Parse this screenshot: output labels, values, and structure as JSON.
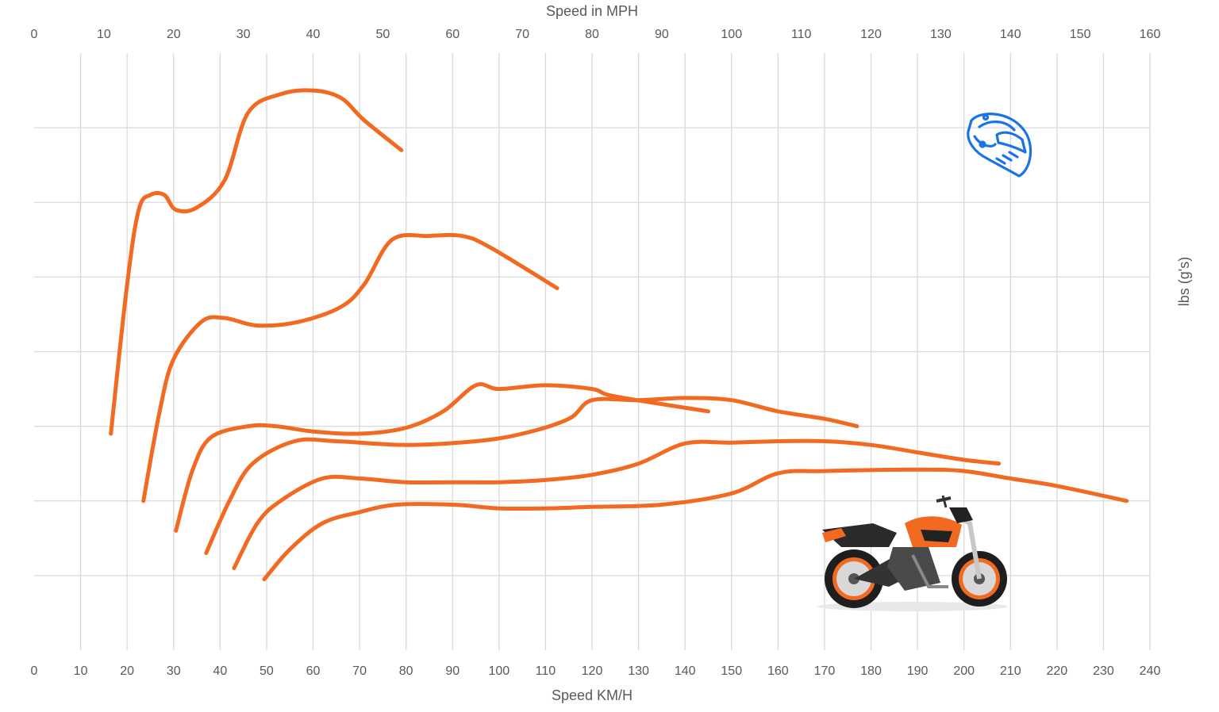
{
  "chart_data": {
    "type": "line",
    "title": "",
    "xlabel": "Speed KM/H",
    "x2label": "Speed in MPH",
    "ylabel": "lbs (g's)",
    "xlim": [
      0,
      240
    ],
    "x2lim": [
      0,
      160
    ],
    "x_ticks": [
      0,
      10,
      20,
      30,
      40,
      50,
      60,
      70,
      80,
      90,
      100,
      110,
      120,
      130,
      140,
      150,
      160,
      170,
      180,
      190,
      200,
      210,
      220,
      230,
      240
    ],
    "x2_ticks": [
      0,
      10,
      20,
      30,
      40,
      50,
      60,
      70,
      80,
      90,
      100,
      110,
      120,
      130,
      140,
      150,
      160
    ],
    "y_levels": 8,
    "grid": true,
    "legend": "none",
    "colors": {
      "series": "#f26a21",
      "grid": "#d9d9d9",
      "text": "#595959",
      "icon": "#1a73e8"
    },
    "icons": [
      "helmet-icon",
      "motorcycle-image"
    ],
    "series": [
      {
        "points": [
          [
            16.5,
            2.9
          ],
          [
            20,
            4.9
          ],
          [
            22.5,
            5.9
          ],
          [
            25,
            6.1
          ],
          [
            28,
            6.1
          ],
          [
            30.5,
            5.9
          ],
          [
            35,
            5.93
          ],
          [
            41,
            6.3
          ],
          [
            46,
            7.2
          ],
          [
            53,
            7.45
          ],
          [
            60,
            7.5
          ],
          [
            66,
            7.4
          ],
          [
            71,
            7.1
          ],
          [
            79,
            6.7
          ]
        ]
      },
      {
        "points": [
          [
            23.5,
            2.0
          ],
          [
            27,
            3.2
          ],
          [
            30,
            3.9
          ],
          [
            36,
            4.4
          ],
          [
            41,
            4.45
          ],
          [
            48,
            4.35
          ],
          [
            57,
            4.4
          ],
          [
            66,
            4.6
          ],
          [
            71,
            4.9
          ],
          [
            77,
            5.5
          ],
          [
            85,
            5.55
          ],
          [
            92,
            5.55
          ],
          [
            98,
            5.4
          ],
          [
            112.5,
            4.85
          ]
        ]
      },
      {
        "points": [
          [
            30.5,
            1.6
          ],
          [
            34,
            2.4
          ],
          [
            38,
            2.85
          ],
          [
            46,
            3.0
          ],
          [
            52,
            3.0
          ],
          [
            60,
            2.93
          ],
          [
            70,
            2.9
          ],
          [
            80,
            2.98
          ],
          [
            88,
            3.2
          ],
          [
            95,
            3.55
          ],
          [
            100,
            3.5
          ],
          [
            110,
            3.55
          ],
          [
            120,
            3.5
          ],
          [
            125,
            3.4
          ],
          [
            145,
            3.2
          ]
        ]
      },
      {
        "points": [
          [
            37,
            1.3
          ],
          [
            42,
            2.0
          ],
          [
            47,
            2.5
          ],
          [
            56,
            2.8
          ],
          [
            65,
            2.8
          ],
          [
            80,
            2.75
          ],
          [
            95,
            2.8
          ],
          [
            105,
            2.9
          ],
          [
            115,
            3.1
          ],
          [
            120,
            3.35
          ],
          [
            130,
            3.35
          ],
          [
            140,
            3.38
          ],
          [
            150,
            3.35
          ],
          [
            160,
            3.2
          ],
          [
            170,
            3.1
          ],
          [
            177,
            3.0
          ]
        ]
      },
      {
        "points": [
          [
            43,
            1.1
          ],
          [
            48,
            1.7
          ],
          [
            53,
            2.0
          ],
          [
            62,
            2.3
          ],
          [
            70,
            2.3
          ],
          [
            80,
            2.25
          ],
          [
            90,
            2.25
          ],
          [
            100,
            2.25
          ],
          [
            110,
            2.28
          ],
          [
            120,
            2.35
          ],
          [
            130,
            2.5
          ],
          [
            140,
            2.77
          ],
          [
            150,
            2.78
          ],
          [
            160,
            2.8
          ],
          [
            170,
            2.8
          ],
          [
            180,
            2.75
          ],
          [
            190,
            2.65
          ],
          [
            200,
            2.55
          ],
          [
            207.5,
            2.5
          ]
        ]
      },
      {
        "points": [
          [
            49.5,
            0.95
          ],
          [
            55,
            1.35
          ],
          [
            62,
            1.7
          ],
          [
            70,
            1.85
          ],
          [
            78,
            1.95
          ],
          [
            90,
            1.95
          ],
          [
            100,
            1.9
          ],
          [
            110,
            1.9
          ],
          [
            120,
            1.92
          ],
          [
            135,
            1.95
          ],
          [
            150,
            2.1
          ],
          [
            160,
            2.37
          ],
          [
            170,
            2.4
          ],
          [
            190,
            2.42
          ],
          [
            200,
            2.4
          ],
          [
            210,
            2.3
          ],
          [
            220,
            2.2
          ],
          [
            235,
            2.0
          ]
        ]
      }
    ]
  }
}
